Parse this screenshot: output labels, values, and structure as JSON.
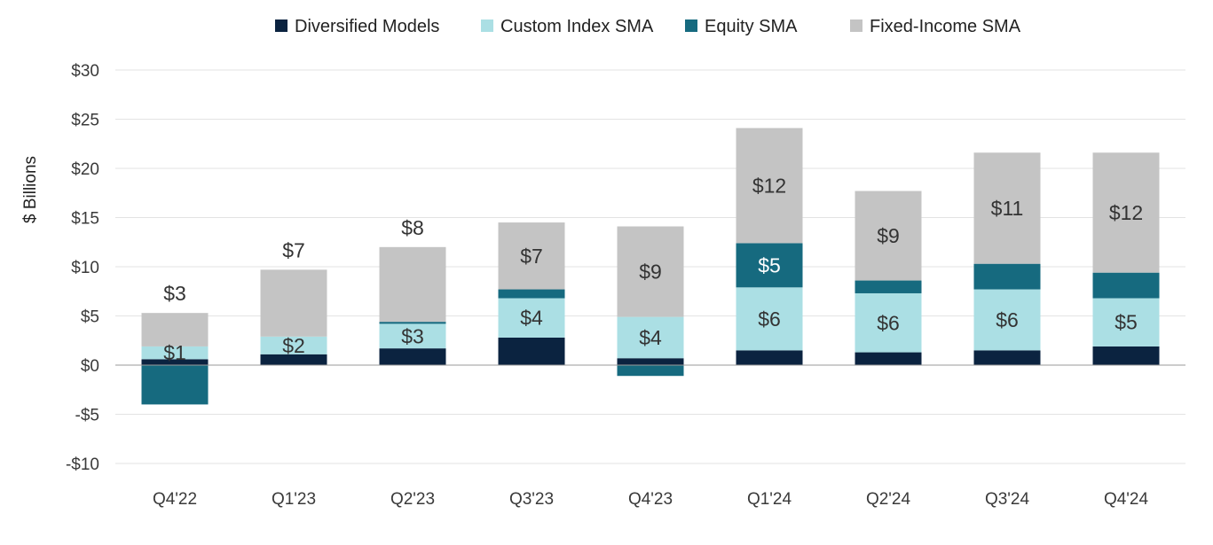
{
  "chart_data": {
    "type": "bar",
    "stacked": true,
    "title": "",
    "xlabel": "",
    "ylabel": "$ Billions",
    "ylim": [
      -10,
      30
    ],
    "yticks": [
      -10,
      -5,
      0,
      5,
      10,
      15,
      20,
      25,
      30
    ],
    "ytick_labels": [
      "-$10",
      "-$5",
      "$0",
      "$5",
      "$10",
      "$15",
      "$20",
      "$25",
      "$30"
    ],
    "grid": true,
    "legend_position": "top",
    "categories": [
      "Q4'22",
      "Q1'23",
      "Q2'23",
      "Q3'23",
      "Q4'23",
      "Q1'24",
      "Q2'24",
      "Q3'24",
      "Q4'24"
    ],
    "series": [
      {
        "name": "Diversified Models",
        "color": "#0b2340",
        "values": [
          0.6,
          1.1,
          1.7,
          2.8,
          0.7,
          1.5,
          1.3,
          1.5,
          1.9
        ],
        "labels": [
          "",
          "",
          "",
          "",
          "",
          "",
          "",
          "",
          ""
        ]
      },
      {
        "name": "Custom Index SMA",
        "color": "#abdfe4",
        "values": [
          1.3,
          1.8,
          2.5,
          4.0,
          4.2,
          6.4,
          6.0,
          6.2,
          4.9
        ],
        "labels": [
          "$1",
          "$2",
          "$3",
          "$4",
          "$4",
          "$6",
          "$6",
          "$6",
          "$5"
        ]
      },
      {
        "name": "Equity SMA",
        "color": "#166a7f",
        "values": [
          -4.0,
          0.0,
          0.2,
          0.9,
          -1.1,
          4.5,
          1.3,
          2.6,
          2.6
        ],
        "labels": [
          "",
          "",
          "",
          "",
          "",
          "$5",
          "",
          "",
          ""
        ]
      },
      {
        "name": "Fixed-Income SMA",
        "color": "#c4c4c4",
        "values": [
          3.4,
          6.8,
          7.6,
          6.8,
          9.2,
          11.7,
          9.1,
          11.3,
          12.2
        ],
        "labels": [
          "$3",
          "$7",
          "$8",
          "$7",
          "$9",
          "$12",
          "$9",
          "$11",
          "$12"
        ]
      }
    ]
  }
}
